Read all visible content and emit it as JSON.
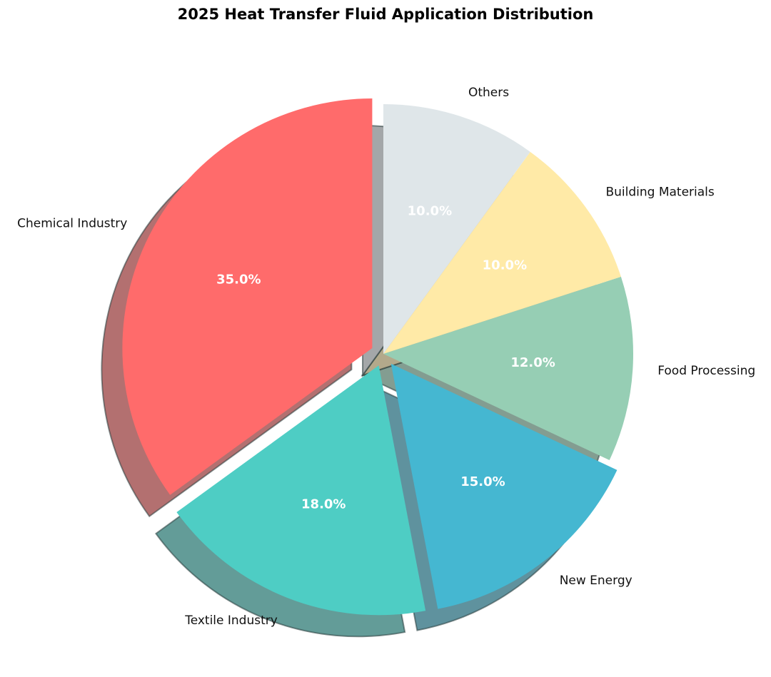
{
  "chart_data": {
    "type": "pie",
    "title": "2025 Heat Transfer Fluid Application Distribution",
    "start_angle_deg": 90,
    "direction": "counterclockwise",
    "shadow": true,
    "slices": [
      {
        "label": "Chemical Industry",
        "value": 35.0,
        "pct_text": "35.0%",
        "color": "#FF6B6B",
        "exploded": true
      },
      {
        "label": "Textile Industry",
        "value": 18.0,
        "pct_text": "18.0%",
        "color": "#4ECDC4",
        "exploded": true
      },
      {
        "label": "New Energy",
        "value": 15.0,
        "pct_text": "15.0%",
        "color": "#45B7D1",
        "exploded": true
      },
      {
        "label": "Food Processing",
        "value": 12.0,
        "pct_text": "12.0%",
        "color": "#96CEB4",
        "exploded": false
      },
      {
        "label": "Building Materials",
        "value": 10.0,
        "pct_text": "10.0%",
        "color": "#FFEAA7",
        "exploded": false
      },
      {
        "label": "Others",
        "value": 10.0,
        "pct_text": "10.0%",
        "color": "#DFE6E9",
        "exploded": false
      }
    ]
  }
}
